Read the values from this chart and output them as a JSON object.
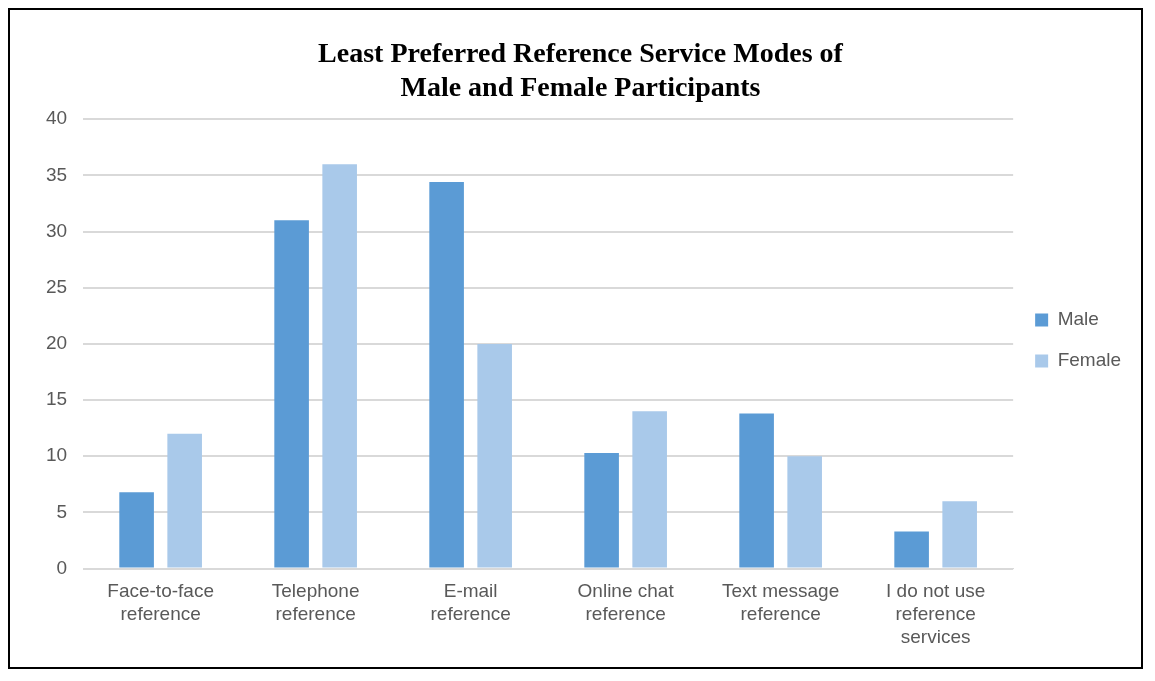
{
  "chart_data": {
    "type": "bar",
    "title": "Least Preferred Reference Service Modes of Male and Female Participants",
    "categories": [
      "Face-to-face reference",
      "Telephone reference",
      "E-mail reference",
      "Online chat reference",
      "Text message reference",
      "I do not use reference services"
    ],
    "series": [
      {
        "name": "Male",
        "color": "#5b9bd5",
        "values": [
          6.8,
          31,
          34.4,
          10.3,
          13.8,
          3.3
        ]
      },
      {
        "name": "Female",
        "color": "#a9c9ea",
        "values": [
          12,
          36,
          20,
          14,
          10,
          6
        ]
      }
    ],
    "ylim": [
      0,
      40
    ],
    "yticks": [
      0,
      5,
      10,
      15,
      20,
      25,
      30,
      35,
      40
    ],
    "grid": "y",
    "legend": "right"
  }
}
